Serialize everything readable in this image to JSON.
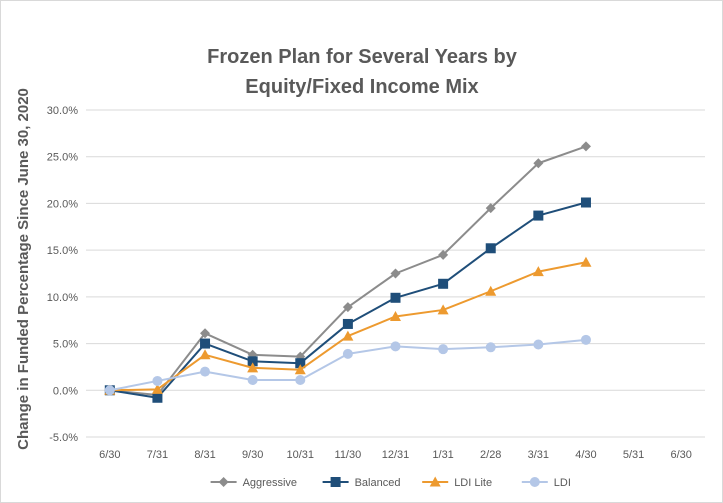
{
  "chart_data": {
    "type": "line",
    "title_lines": [
      "Frozen Plan for Several Years by",
      "Equity/Fixed Income Mix"
    ],
    "xlabel": "",
    "ylabel": "Change in Funded Percentage Since June 30, 2020",
    "categories": [
      "6/30",
      "7/31",
      "8/31",
      "9/30",
      "10/31",
      "11/30",
      "12/31",
      "1/31",
      "2/28",
      "3/31",
      "4/30",
      "5/31",
      "6/30"
    ],
    "yticks": [
      "-5.0%",
      "0.0%",
      "5.0%",
      "10.0%",
      "15.0%",
      "20.0%",
      "25.0%",
      "30.0%"
    ],
    "ylim": [
      -5,
      30
    ],
    "grid": "horizontal",
    "legend_position": "bottom",
    "series": [
      {
        "name": "Aggressive",
        "color": "#8c8c8c",
        "marker": "diamond",
        "values": [
          0.0,
          -0.5,
          6.1,
          3.8,
          3.6,
          8.9,
          12.5,
          14.5,
          19.5,
          24.3,
          26.1,
          null,
          null
        ]
      },
      {
        "name": "Balanced",
        "color": "#1f4e79",
        "marker": "square",
        "values": [
          0.0,
          -0.8,
          5.0,
          3.1,
          2.9,
          7.1,
          9.9,
          11.4,
          15.2,
          18.7,
          20.1,
          null,
          null
        ]
      },
      {
        "name": "LDI Lite",
        "color": "#ed9a2f",
        "marker": "triangle",
        "values": [
          0.0,
          0.1,
          3.8,
          2.4,
          2.2,
          5.8,
          7.9,
          8.6,
          10.6,
          12.7,
          13.7,
          null,
          null
        ]
      },
      {
        "name": "LDI",
        "color": "#b4c7e7",
        "marker": "circle",
        "values": [
          0.0,
          1.0,
          2.0,
          1.1,
          1.1,
          3.9,
          4.7,
          4.4,
          4.6,
          4.9,
          5.4,
          null,
          null
        ]
      }
    ]
  }
}
